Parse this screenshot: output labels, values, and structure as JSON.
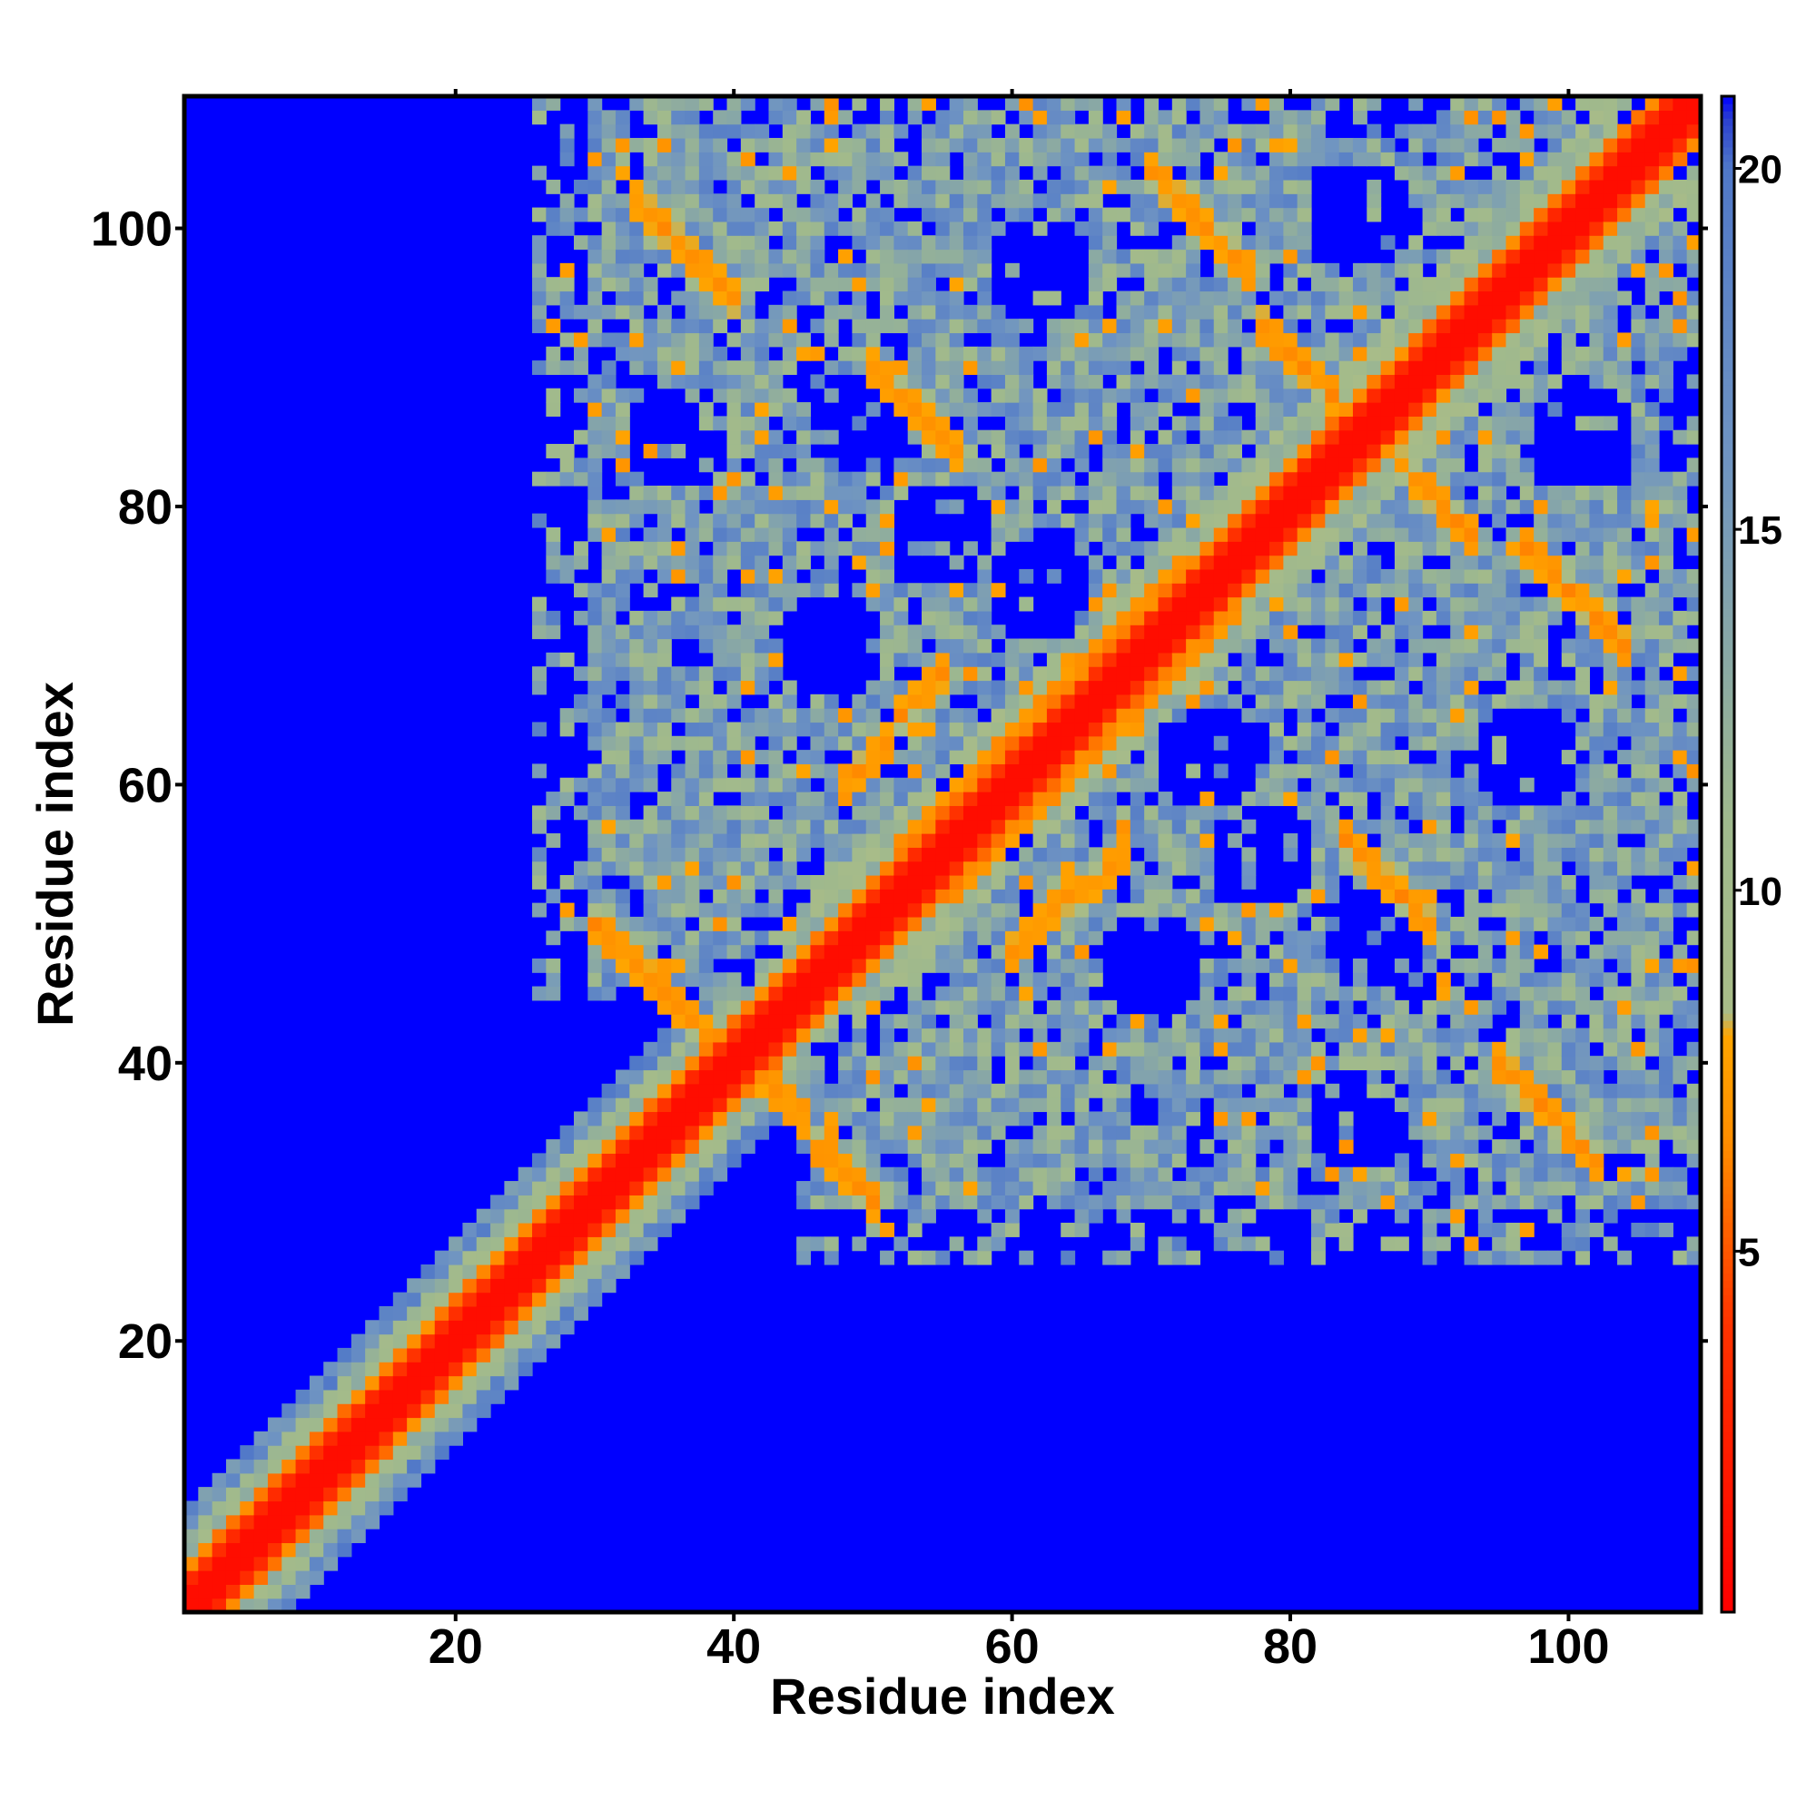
{
  "chart_data": {
    "type": "heatmap",
    "title": "",
    "xlabel": "Residue index",
    "ylabel": "Residue index",
    "x_range": [
      1,
      109
    ],
    "y_range": [
      1,
      109
    ],
    "xticks": [
      20,
      40,
      60,
      80,
      100
    ],
    "yticks": [
      20,
      40,
      60,
      80,
      100
    ],
    "colorbar": {
      "ticks": [
        5,
        10,
        15,
        20
      ],
      "range": [
        0,
        21
      ],
      "stops": [
        {
          "value": 0,
          "color": "#ff0000"
        },
        {
          "value": 4,
          "color": "#ff3300"
        },
        {
          "value": 6.5,
          "color": "#ff8c00"
        },
        {
          "value": 8,
          "color": "#ffa500"
        },
        {
          "value": 8.3,
          "color": "#a9bc88"
        },
        {
          "value": 11,
          "color": "#9fb98d"
        },
        {
          "value": 16,
          "color": "#6f94c2"
        },
        {
          "value": 20,
          "color": "#5078c8"
        },
        {
          "value": 20.7,
          "color": "#2a3fd0"
        },
        {
          "value": 21,
          "color": "#0000ff"
        }
      ]
    },
    "background_color": "#0000ff",
    "diagonal_color": "#ff0000",
    "contact_features": [
      {
        "residues_a": [
          30,
          40
        ],
        "residues_b": [
          40,
          50
        ],
        "orientation": "antiparallel"
      },
      {
        "residues_a": [
          41,
          50
        ],
        "residues_b": [
          30,
          40
        ],
        "orientation": "antiparallel"
      },
      {
        "residues_a": [
          33,
          40
        ],
        "residues_b": [
          95,
          102
        ],
        "orientation": "antiparallel"
      },
      {
        "residues_a": [
          95,
          102
        ],
        "residues_b": [
          33,
          40
        ],
        "orientation": "antiparallel"
      },
      {
        "residues_a": [
          48,
          55
        ],
        "residues_b": [
          60,
          68
        ],
        "orientation": "parallel"
      },
      {
        "residues_a": [
          60,
          68
        ],
        "residues_b": [
          48,
          55
        ],
        "orientation": "parallel"
      },
      {
        "residues_a": [
          50,
          56
        ],
        "residues_b": [
          84,
          90
        ],
        "orientation": "antiparallel"
      },
      {
        "residues_a": [
          84,
          90
        ],
        "residues_b": [
          50,
          56
        ],
        "orientation": "antiparallel"
      },
      {
        "residues_a": [
          70,
          77
        ],
        "residues_b": [
          97,
          104
        ],
        "orientation": "antiparallel"
      },
      {
        "residues_a": [
          97,
          104
        ],
        "residues_b": [
          70,
          77
        ],
        "orientation": "antiparallel"
      },
      {
        "residues_a": [
          78,
          83
        ],
        "residues_b": [
          88,
          93
        ],
        "orientation": "antiparallel"
      },
      {
        "residues_a": [
          88,
          93
        ],
        "residues_b": [
          78,
          83
        ],
        "orientation": "antiparallel"
      }
    ]
  }
}
